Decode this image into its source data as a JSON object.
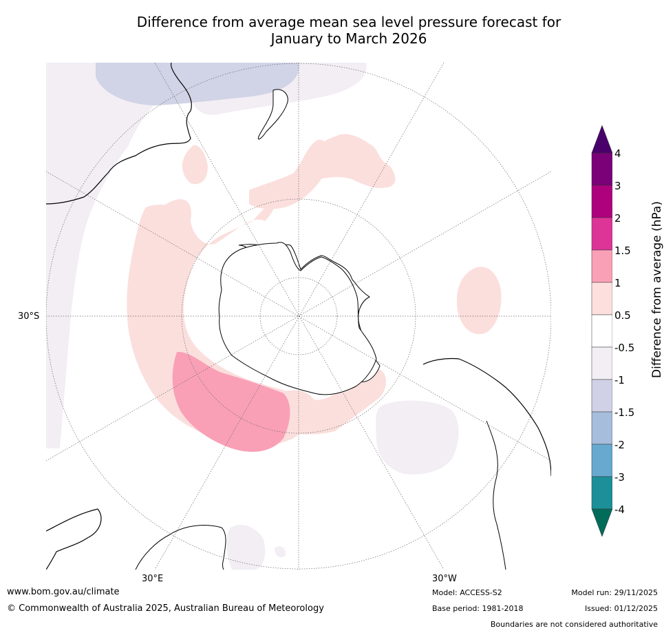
{
  "title": {
    "line1": "Difference from average mean sea level pressure forecast for",
    "line2": "January to March 2026"
  },
  "map": {
    "projection": "south-polar-stereographic",
    "labels": {
      "lat_30s": "30°S",
      "lon_30e": "30°E",
      "lon_30w": "30°W"
    },
    "colors": {
      "ocean": "#ffffff",
      "anomaly_0_5_to_1": "#fbdfdd",
      "anomaly_1_to_1_5": "#f9a0b7",
      "anomaly_neg_0_5_to_neg_1": "#f2eef4",
      "anomaly_neg_1_to_neg_1_5": "#d1d3e6",
      "coastline": "#000000",
      "graticule": "#666666"
    }
  },
  "colorbar": {
    "label": "Difference from average (hPa)",
    "ticks": [
      "4",
      "3",
      "2",
      "1.5",
      "1",
      "0.5",
      "-0.5",
      "-1",
      "-1.5",
      "-2",
      "-3",
      "-4"
    ],
    "bins": [
      {
        "range": "3 to 4",
        "color": "#7a0177"
      },
      {
        "range": "2 to 3",
        "color": "#ae017e"
      },
      {
        "range": "1.5 to 2",
        "color": "#dd3497"
      },
      {
        "range": "1 to 1.5",
        "color": "#f9a0b7"
      },
      {
        "range": "0.5 to 1",
        "color": "#fde0dd"
      },
      {
        "range": "-0.5 to 0.5",
        "color": "#ffffff"
      },
      {
        "range": "-1 to -0.5",
        "color": "#f2eef4"
      },
      {
        "range": "-1.5 to -1",
        "color": "#d0d1e6"
      },
      {
        "range": "-2 to -1.5",
        "color": "#a6bddb"
      },
      {
        "range": "-3 to -2",
        "color": "#67a9cf"
      },
      {
        "range": "-4 to -3",
        "color": "#1c9099"
      }
    ],
    "over_color": "#49006a",
    "under_color": "#016c59"
  },
  "footer": {
    "website": "www.bom.gov.au/climate",
    "copyright": "© Commonwealth of Australia 2025, Australian Bureau of Meteorology",
    "model": "Model: ACCESS-S2",
    "base_period": "Base period: 1981-2018",
    "model_run": "Model run: 29/11/2025",
    "issued": "Issued: 01/12/2025",
    "disclaimer": "Boundaries are not considered authoritative"
  }
}
